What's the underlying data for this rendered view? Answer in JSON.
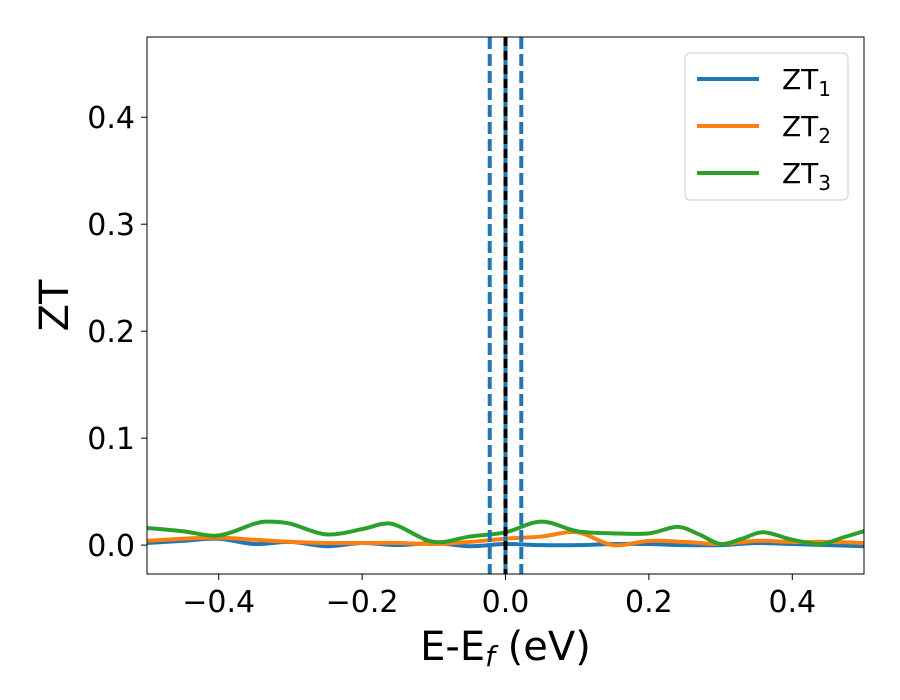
{
  "chart_data": {
    "type": "line",
    "xlabel": "E-E",
    "xlabel_sub": "f",
    "xlabel_unit": " (eV)",
    "ylabel": "ZT",
    "xlim": [
      -0.5,
      0.5
    ],
    "ylim": [
      -0.027,
      0.475
    ],
    "x_ticks": [
      -0.4,
      -0.2,
      0.0,
      0.2,
      0.4
    ],
    "x_tick_labels": [
      "−0.4",
      "−0.2",
      "0.0",
      "0.2",
      "0.4"
    ],
    "y_ticks": [
      0.0,
      0.1,
      0.2,
      0.3,
      0.4
    ],
    "y_tick_labels": [
      "0.0",
      "0.1",
      "0.2",
      "0.3",
      "0.4"
    ],
    "grid": false,
    "legend_position": "top-right",
    "vertical_lines": [
      {
        "x": -0.022,
        "style": "dashed",
        "color": "#1f77b4"
      },
      {
        "x": 0.022,
        "style": "dashed",
        "color": "#1f77b4"
      },
      {
        "x": 0.0,
        "style": "solid",
        "color": "#1f77b4"
      },
      {
        "x": 0.0,
        "style": "dashed",
        "color": "#000000"
      }
    ],
    "series": [
      {
        "name": "ZT",
        "sub": "1",
        "color": "#1f77b4",
        "x": [
          -0.5,
          -0.45,
          -0.4,
          -0.35,
          -0.3,
          -0.25,
          -0.2,
          -0.15,
          -0.1,
          -0.05,
          0.0,
          0.05,
          0.1,
          0.15,
          0.2,
          0.25,
          0.3,
          0.35,
          0.4,
          0.45,
          0.5
        ],
        "y": [
          0.002,
          0.004,
          0.006,
          0.001,
          0.003,
          -0.001,
          0.002,
          0.0,
          0.002,
          -0.001,
          0.001,
          0.0,
          0.0,
          0.001,
          0.001,
          0.0,
          0.0,
          0.002,
          0.001,
          0.0,
          -0.001
        ]
      },
      {
        "name": "ZT",
        "sub": "2",
        "color": "#ff7f0e",
        "x": [
          -0.5,
          -0.45,
          -0.4,
          -0.35,
          -0.3,
          -0.25,
          -0.2,
          -0.15,
          -0.1,
          -0.05,
          0.0,
          0.05,
          0.1,
          0.15,
          0.2,
          0.25,
          0.3,
          0.35,
          0.4,
          0.45,
          0.5
        ],
        "y": [
          0.004,
          0.006,
          0.007,
          0.005,
          0.003,
          0.002,
          0.002,
          0.002,
          0.001,
          0.003,
          0.006,
          0.008,
          0.012,
          0.0,
          0.004,
          0.003,
          0.001,
          0.004,
          0.003,
          0.003,
          0.002
        ]
      },
      {
        "name": "ZT",
        "sub": "3",
        "color": "#2ca02c",
        "x": [
          -0.5,
          -0.45,
          -0.4,
          -0.35,
          -0.33,
          -0.3,
          -0.25,
          -0.2,
          -0.17,
          -0.15,
          -0.1,
          -0.05,
          0.0,
          0.05,
          0.1,
          0.15,
          0.2,
          0.24,
          0.27,
          0.3,
          0.33,
          0.36,
          0.4,
          0.44,
          0.47,
          0.5
        ],
        "y": [
          0.016,
          0.013,
          0.009,
          0.02,
          0.022,
          0.02,
          0.01,
          0.015,
          0.02,
          0.018,
          0.003,
          0.008,
          0.012,
          0.022,
          0.013,
          0.011,
          0.011,
          0.017,
          0.01,
          0.001,
          0.006,
          0.012,
          0.005,
          0.001,
          0.007,
          0.013
        ]
      }
    ]
  }
}
